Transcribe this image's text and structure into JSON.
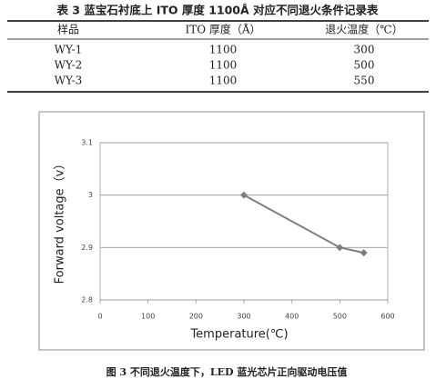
{
  "table": {
    "title": "表 3 蓝宝石衬底上 ITO 厚度 1100Å 对应不同退火条件记录表",
    "headers": [
      "样品",
      "ITO 厚度（Å）",
      "退火温度（℃）"
    ],
    "rows": [
      [
        "WY-1",
        "1100",
        "300"
      ],
      [
        "WY-2",
        "1100",
        "500"
      ],
      [
        "WY-3",
        "1100",
        "550"
      ]
    ]
  },
  "chart_data": {
    "type": "line",
    "x_label": "Temperature(℃)",
    "y_label": "Forward voltage（v）",
    "x": [
      300,
      500,
      550
    ],
    "values": [
      3.0,
      2.9,
      2.89
    ],
    "color": "#7f7f7f",
    "xlim": [
      0,
      600
    ],
    "xticks": [
      0,
      100,
      200,
      300,
      400,
      500,
      600
    ],
    "ylim": [
      2.8,
      3.1
    ],
    "yticks": [
      2.8,
      2.9,
      3,
      3.1
    ],
    "grid": true
  },
  "caption": "图 3 不同退火温度下，LED 蓝光芯片正向驱动电压值"
}
